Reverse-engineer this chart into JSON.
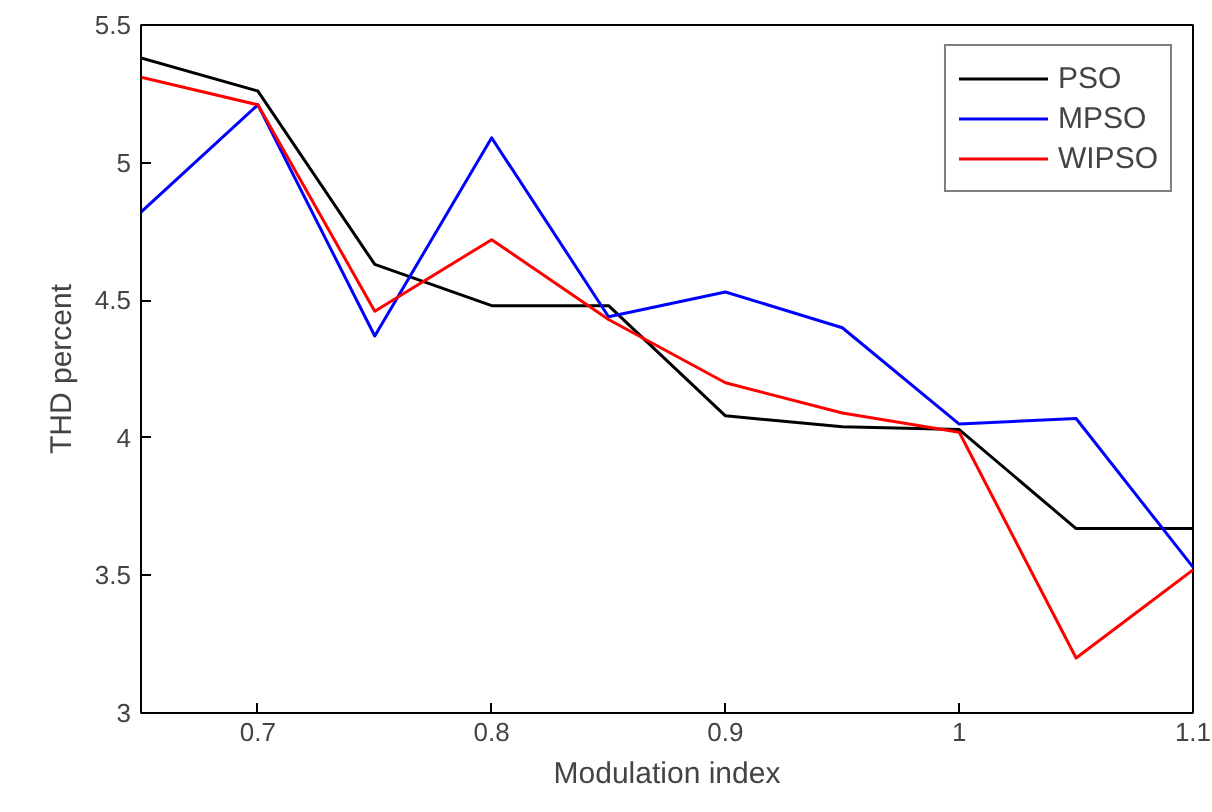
{
  "chart_data": {
    "type": "line",
    "xlabel": "Modulation index",
    "ylabel": "THD percent",
    "x": [
      0.65,
      0.7,
      0.75,
      0.8,
      0.85,
      0.9,
      0.95,
      1.0,
      1.05,
      1.1
    ],
    "series": [
      {
        "name": "PSO",
        "color": "#000000",
        "values": [
          5.38,
          5.26,
          4.63,
          4.48,
          4.48,
          4.08,
          4.04,
          4.03,
          3.67,
          3.67
        ]
      },
      {
        "name": "MPSO",
        "color": "#0000ff",
        "values": [
          4.82,
          5.21,
          4.37,
          5.09,
          4.44,
          4.53,
          4.4,
          4.05,
          4.07,
          3.53
        ]
      },
      {
        "name": "WIPSO",
        "color": "#ff0000",
        "values": [
          5.31,
          5.21,
          4.46,
          4.72,
          4.43,
          4.2,
          4.09,
          4.02,
          3.2,
          3.52
        ]
      }
    ],
    "xlim": [
      0.65,
      1.1
    ],
    "xticks": [
      0.7,
      0.8,
      0.9,
      1,
      1.1
    ],
    "ylim": [
      3,
      5.5
    ],
    "yticks": [
      3,
      3.5,
      4,
      4.5,
      5,
      5.5
    ],
    "grid": false,
    "legend": "top right"
  }
}
